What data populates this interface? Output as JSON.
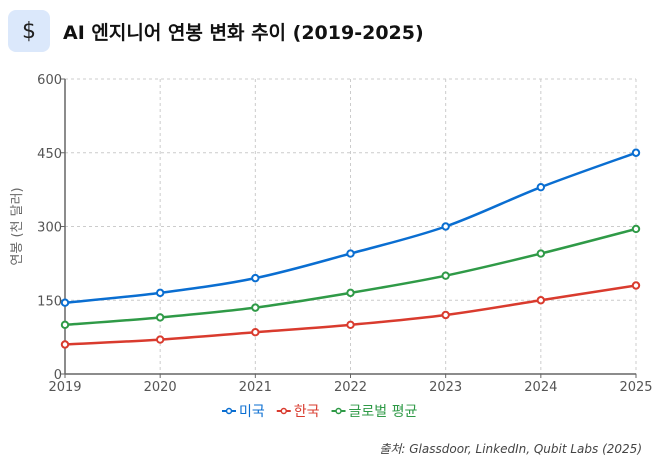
{
  "header": {
    "icon": "dollar-icon",
    "icon_glyph": "$",
    "title": "AI 엔지니어 연봉 변화 추이 (2019-2025)"
  },
  "source": "출처: Glassdoor, LinkedIn, Qubit Labs (2025)",
  "chart_data": {
    "type": "line",
    "title": "AI 엔지니어 연봉 변화 추이 (2019-2025)",
    "xlabel": "",
    "ylabel": "연봉 (천 달러)",
    "x": [
      "2019",
      "2020",
      "2021",
      "2022",
      "2023",
      "2024",
      "2025"
    ],
    "ylim": [
      0,
      600
    ],
    "yticks": [
      "0",
      "150",
      "300",
      "450",
      "600"
    ],
    "grid": true,
    "legend": "bottom",
    "series": [
      {
        "name": "미국",
        "color": "#0a6ed1",
        "values": [
          145,
          165,
          195,
          245,
          300,
          380,
          450
        ]
      },
      {
        "name": "한국",
        "color": "#d93b2e",
        "values": [
          60,
          70,
          85,
          100,
          120,
          150,
          180
        ]
      },
      {
        "name": "글로벌 평균",
        "color": "#2f9a47",
        "values": [
          100,
          115,
          135,
          165,
          200,
          245,
          295
        ]
      }
    ]
  }
}
